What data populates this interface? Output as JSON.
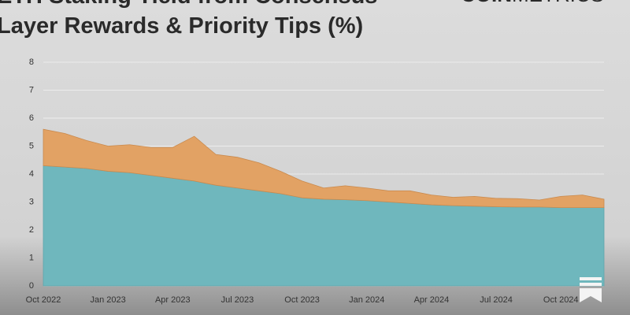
{
  "chart_data": {
    "type": "stacked-area",
    "title": [
      "ETH Staking Yield from Consensus",
      "Layer Rewards & Priority Tips (%)"
    ],
    "logo": [
      "COIN",
      "METRICS"
    ],
    "categories": [
      "Oct 2022",
      null,
      null,
      "Jan 2023",
      null,
      null,
      "Apr 2023",
      null,
      null,
      "Jul 2023",
      null,
      null,
      "Oct 2023",
      null,
      null,
      "Jan 2024",
      null,
      null,
      "Apr 2024",
      null,
      null,
      "Jul 2024",
      null,
      null,
      "Oct 2024",
      null,
      null
    ],
    "series": [
      {
        "name": "Consensus Layer Rewards",
        "color": "#6fb7bd",
        "values": [
          4.3,
          4.25,
          4.2,
          4.1,
          4.05,
          3.95,
          3.85,
          3.75,
          3.6,
          3.5,
          3.4,
          3.3,
          3.15,
          3.1,
          3.08,
          3.05,
          3.0,
          2.95,
          2.9,
          2.87,
          2.85,
          2.83,
          2.82,
          2.82,
          2.8,
          2.8,
          2.8
        ]
      },
      {
        "name": "Priority Tips",
        "color": "#e2a264",
        "values": [
          1.3,
          1.2,
          1.0,
          0.9,
          1.0,
          1.0,
          1.1,
          1.6,
          1.1,
          1.1,
          1.0,
          0.8,
          0.6,
          0.4,
          0.5,
          0.45,
          0.4,
          0.45,
          0.35,
          0.3,
          0.35,
          0.3,
          0.3,
          0.25,
          0.4,
          0.45,
          0.3
        ]
      }
    ],
    "ylim": [
      0,
      8
    ],
    "yticks": [
      0,
      1,
      2,
      3,
      4,
      5,
      6,
      7,
      8
    ],
    "grid": true
  }
}
